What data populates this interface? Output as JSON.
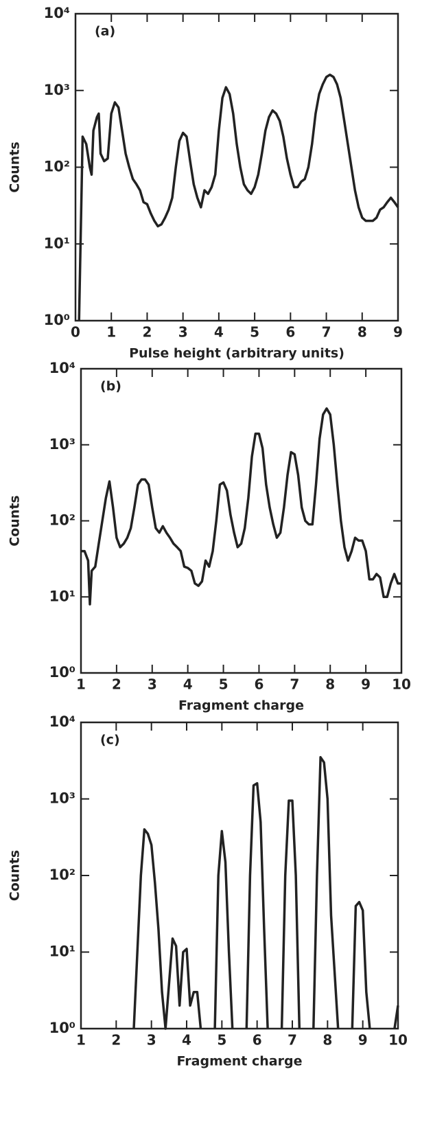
{
  "chart_data": [
    {
      "type": "line",
      "panel_label": "(a)",
      "ylabel": "Counts",
      "xlabel": "Pulse height (arbitrary units)",
      "log_y": true,
      "xlim": [
        0,
        9
      ],
      "xticks": [
        0,
        1,
        2,
        3,
        4,
        5,
        6,
        7,
        8,
        9
      ],
      "ylim": [
        1,
        10000
      ],
      "yticks": [
        {
          "value": 1,
          "label": "10⁰"
        },
        {
          "value": 10,
          "label": "10¹"
        },
        {
          "value": 100,
          "label": "10²"
        },
        {
          "value": 1000,
          "label": "10³"
        },
        {
          "value": 10000,
          "label": "10⁴"
        }
      ],
      "x": [
        0.1,
        0.2,
        0.3,
        0.4,
        0.45,
        0.5,
        0.6,
        0.65,
        0.7,
        0.8,
        0.9,
        1.0,
        1.1,
        1.2,
        1.3,
        1.4,
        1.5,
        1.6,
        1.7,
        1.8,
        1.9,
        2.0,
        2.1,
        2.2,
        2.3,
        2.4,
        2.5,
        2.6,
        2.7,
        2.8,
        2.9,
        3.0,
        3.1,
        3.2,
        3.3,
        3.4,
        3.5,
        3.6,
        3.7,
        3.8,
        3.9,
        4.0,
        4.1,
        4.2,
        4.3,
        4.4,
        4.5,
        4.6,
        4.7,
        4.8,
        4.9,
        5.0,
        5.1,
        5.2,
        5.3,
        5.4,
        5.5,
        5.6,
        5.7,
        5.8,
        5.9,
        6.0,
        6.1,
        6.2,
        6.3,
        6.4,
        6.5,
        6.6,
        6.7,
        6.8,
        6.9,
        7.0,
        7.1,
        7.2,
        7.3,
        7.4,
        7.5,
        7.6,
        7.7,
        7.8,
        7.9,
        8.0,
        8.1,
        8.2,
        8.3,
        8.4,
        8.5,
        8.6,
        8.7,
        8.8,
        8.9,
        9.0
      ],
      "series": [
        {
          "color": "#222222",
          "values": [
            1,
            250,
            200,
            100,
            80,
            300,
            450,
            500,
            150,
            120,
            130,
            500,
            700,
            600,
            300,
            150,
            100,
            70,
            60,
            50,
            35,
            33,
            25,
            20,
            17,
            18,
            22,
            28,
            40,
            100,
            220,
            280,
            250,
            120,
            60,
            40,
            30,
            50,
            45,
            55,
            80,
            300,
            800,
            1100,
            900,
            500,
            200,
            100,
            60,
            50,
            45,
            55,
            80,
            150,
            300,
            450,
            550,
            500,
            400,
            250,
            130,
            80,
            55,
            55,
            65,
            70,
            100,
            200,
            500,
            900,
            1200,
            1500,
            1600,
            1500,
            1200,
            800,
            400,
            200,
            100,
            50,
            30,
            22,
            20,
            20,
            20,
            22,
            28,
            30,
            35,
            40,
            35,
            30
          ]
        }
      ]
    },
    {
      "type": "line",
      "panel_label": "(b)",
      "ylabel": "Counts",
      "xlabel": "Fragment charge",
      "log_y": true,
      "xlim": [
        1,
        10
      ],
      "xticks": [
        1,
        2,
        3,
        4,
        5,
        6,
        7,
        8,
        9,
        10
      ],
      "ylim": [
        1,
        10000
      ],
      "yticks": [
        {
          "value": 1,
          "label": "10⁰"
        },
        {
          "value": 10,
          "label": "10¹"
        },
        {
          "value": 100,
          "label": "10²"
        },
        {
          "value": 1000,
          "label": "10³"
        },
        {
          "value": 10000,
          "label": "10⁴"
        }
      ],
      "x": [
        1.0,
        1.1,
        1.2,
        1.25,
        1.3,
        1.4,
        1.5,
        1.6,
        1.7,
        1.8,
        1.9,
        2.0,
        2.1,
        2.2,
        2.3,
        2.4,
        2.5,
        2.6,
        2.7,
        2.8,
        2.9,
        3.0,
        3.1,
        3.2,
        3.3,
        3.4,
        3.5,
        3.6,
        3.7,
        3.8,
        3.9,
        4.0,
        4.1,
        4.2,
        4.3,
        4.4,
        4.5,
        4.6,
        4.7,
        4.8,
        4.9,
        5.0,
        5.1,
        5.2,
        5.3,
        5.4,
        5.5,
        5.6,
        5.7,
        5.8,
        5.9,
        6.0,
        6.1,
        6.2,
        6.3,
        6.4,
        6.5,
        6.6,
        6.7,
        6.8,
        6.9,
        7.0,
        7.1,
        7.2,
        7.3,
        7.4,
        7.5,
        7.6,
        7.7,
        7.8,
        7.9,
        8.0,
        8.1,
        8.2,
        8.3,
        8.4,
        8.5,
        8.6,
        8.7,
        8.8,
        8.9,
        9.0,
        9.1,
        9.2,
        9.3,
        9.4,
        9.5,
        9.6,
        9.7,
        9.8,
        9.9,
        10.0
      ],
      "series": [
        {
          "color": "#222222",
          "values": [
            40,
            40,
            30,
            8,
            22,
            25,
            50,
            100,
            200,
            330,
            150,
            60,
            45,
            50,
            60,
            80,
            150,
            300,
            350,
            350,
            300,
            150,
            80,
            70,
            85,
            70,
            60,
            50,
            45,
            40,
            25,
            24,
            22,
            15,
            14,
            16,
            30,
            25,
            40,
            100,
            300,
            320,
            250,
            120,
            70,
            45,
            50,
            80,
            200,
            700,
            1400,
            1400,
            900,
            300,
            150,
            90,
            60,
            70,
            150,
            400,
            800,
            750,
            400,
            150,
            100,
            90,
            90,
            300,
            1200,
            2500,
            3000,
            2500,
            1000,
            300,
            100,
            45,
            30,
            40,
            60,
            55,
            55,
            40,
            17,
            17,
            20,
            18,
            10,
            10,
            15,
            20,
            15,
            15
          ]
        }
      ]
    },
    {
      "type": "line",
      "panel_label": "(c)",
      "ylabel": "Counts",
      "xlabel": "Fragment charge",
      "log_y": true,
      "xlim": [
        1,
        10
      ],
      "xticks": [
        1,
        2,
        3,
        4,
        5,
        6,
        7,
        8,
        9,
        10
      ],
      "ylim": [
        1,
        10000
      ],
      "yticks": [
        {
          "value": 1,
          "label": "10⁰"
        },
        {
          "value": 10,
          "label": "10¹"
        },
        {
          "value": 100,
          "label": "10²"
        },
        {
          "value": 1000,
          "label": "10³"
        },
        {
          "value": 10000,
          "label": "10⁴"
        }
      ],
      "x": [
        2.5,
        2.7,
        2.8,
        2.9,
        3.0,
        3.1,
        3.2,
        3.3,
        3.4,
        3.6,
        3.7,
        3.8,
        3.9,
        4.0,
        4.1,
        4.2,
        4.3,
        4.4,
        4.6,
        4.8,
        4.9,
        5.0,
        5.1,
        5.2,
        5.3,
        5.5,
        5.7,
        5.8,
        5.9,
        6.0,
        6.1,
        6.2,
        6.3,
        6.5,
        6.7,
        6.8,
        6.9,
        7.0,
        7.1,
        7.2,
        7.4,
        7.6,
        7.7,
        7.8,
        7.9,
        8.0,
        8.1,
        8.3,
        8.5,
        8.7,
        8.8,
        8.9,
        9.0,
        9.1,
        9.2,
        9.5,
        9.9,
        10.0
      ],
      "series": [
        {
          "color": "#222222",
          "values": [
            1,
            100,
            400,
            350,
            250,
            80,
            20,
            3,
            1,
            15,
            12,
            2,
            10,
            11,
            2,
            3,
            3,
            1,
            null,
            1,
            100,
            380,
            150,
            10,
            1,
            null,
            1,
            100,
            1500,
            1600,
            500,
            20,
            1,
            null,
            1,
            100,
            950,
            950,
            100,
            1,
            null,
            1,
            100,
            3500,
            3000,
            1000,
            30,
            1,
            null,
            1,
            40,
            45,
            35,
            3,
            1,
            null,
            1,
            2
          ]
        }
      ]
    }
  ]
}
